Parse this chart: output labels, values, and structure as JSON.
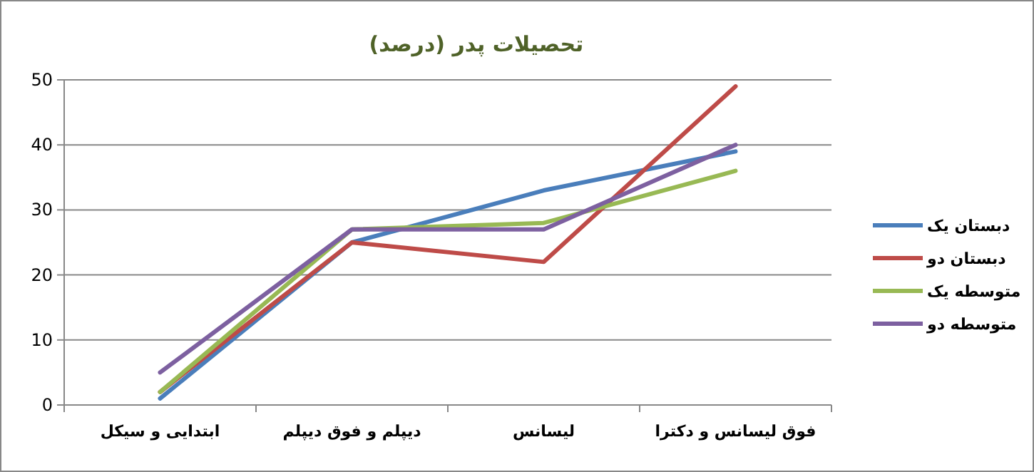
{
  "chart_data": {
    "type": "line",
    "title": "تحصیلات پدر (درصد)",
    "categories": [
      "ابتدایی و سیکل",
      "دیپلم و فوق دیپلم",
      "لیسانس",
      "فوق لیسانس و دکترا"
    ],
    "series": [
      {
        "name": "دبستان یک",
        "color": "#4a7ebb",
        "values": [
          1,
          25,
          33,
          39
        ]
      },
      {
        "name": "دبستان دو",
        "color": "#be4b48",
        "values": [
          2,
          25,
          22,
          49
        ]
      },
      {
        "name": "متوسطه یک",
        "color": "#98b954",
        "values": [
          2,
          27,
          28,
          36
        ]
      },
      {
        "name": "متوسطه دو",
        "color": "#7d60a0",
        "values": [
          5,
          27,
          27,
          40
        ]
      }
    ],
    "ylim": [
      0,
      50
    ],
    "yticks": [
      0,
      10,
      20,
      30,
      40,
      50
    ],
    "grid": "y",
    "legend": "right"
  }
}
